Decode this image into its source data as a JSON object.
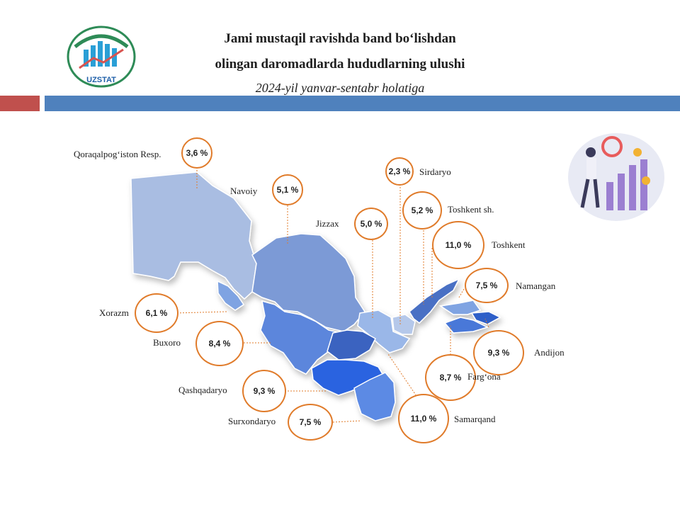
{
  "title": {
    "line1": "Jami mustaqil ravishda band bo‘lishdan",
    "line2": "olingan daromadlarda hududlarning ulushi",
    "subtitle": "2024-yil yanvar-sentabr holatiga"
  },
  "logo": {
    "text": "UZSTAT"
  },
  "colors": {
    "accent_red": "#c0504d",
    "accent_blue": "#4f81bd",
    "circle_border": "#e07b2a"
  },
  "regions": [
    {
      "name": "Qoraqalpog‘iston  Resp.",
      "value": "3,6 %"
    },
    {
      "name": "Navoiy",
      "value": "5,1 %"
    },
    {
      "name": "Jizzax",
      "value": "5,0 %"
    },
    {
      "name": "Sirdaryo",
      "value": "2,3 %"
    },
    {
      "name": "Toshkent  sh.",
      "value": "5,2 %"
    },
    {
      "name": "Toshkent",
      "value": "11,0 %"
    },
    {
      "name": "Namangan",
      "value": "7,5 %"
    },
    {
      "name": "Andijon",
      "value": "9,3 %"
    },
    {
      "name": "Farg‘ona",
      "value": "8,7 %"
    },
    {
      "name": "Samarqand",
      "value": "11,0 %"
    },
    {
      "name": "Surxondaryo",
      "value": "7,5 %"
    },
    {
      "name": "Qashqadaryo",
      "value": "9,3 %"
    },
    {
      "name": "Buxoro",
      "value": "8,4 %"
    },
    {
      "name": "Xorazm",
      "value": "6,1 %"
    }
  ]
}
